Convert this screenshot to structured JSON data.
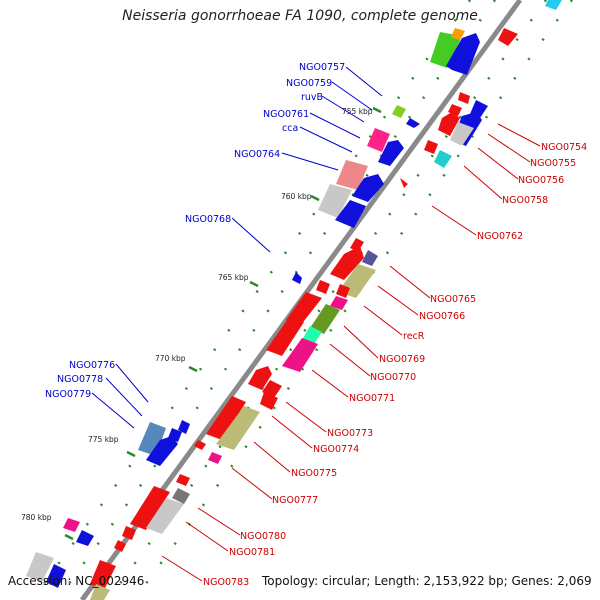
{
  "title": "Neisseria gonorrhoeae FA 1090, complete genome",
  "footer": {
    "accession": "Accession: NC_002946",
    "info": "Topology: circular; Length: 2,153,922 bp; Genes: 2,069"
  },
  "colors": {
    "backbone": "#888888",
    "upper_label": "#0000cc",
    "lower_label": "#cc0000",
    "tick": "#2a8a2a"
  },
  "scale": {
    "unit": "kbp",
    "ticks": [
      {
        "kbp": 755,
        "label": "755 kbp"
      },
      {
        "kbp": 760,
        "label": "760 kbp"
      },
      {
        "kbp": 765,
        "label": "765 kbp"
      },
      {
        "kbp": 770,
        "label": "770 kbp"
      },
      {
        "kbp": 775,
        "label": "775 kbp"
      },
      {
        "kbp": 780,
        "label": "780 kbp"
      }
    ]
  },
  "labels_upper": [
    {
      "text": "NGO0757"
    },
    {
      "text": "NGO0759"
    },
    {
      "text": "ruvB"
    },
    {
      "text": "NGO0761"
    },
    {
      "text": "cca"
    },
    {
      "text": "NGO0764"
    },
    {
      "text": "NGO0768"
    },
    {
      "text": "NGO0776"
    },
    {
      "text": "NGO0778"
    },
    {
      "text": "NGO0779"
    }
  ],
  "labels_lower": [
    {
      "text": "NGO0754"
    },
    {
      "text": "NGO0755"
    },
    {
      "text": "NGO0756"
    },
    {
      "text": "NGO0758"
    },
    {
      "text": "NGO0762"
    },
    {
      "text": "NGO0765"
    },
    {
      "text": "NGO0766"
    },
    {
      "text": "recR"
    },
    {
      "text": "NGO0769"
    },
    {
      "text": "NGO0770"
    },
    {
      "text": "NGO0771"
    },
    {
      "text": "NGO0773"
    },
    {
      "text": "NGO0774"
    },
    {
      "text": "NGO0775"
    },
    {
      "text": "NGO0777"
    },
    {
      "text": "NGO0780"
    },
    {
      "text": "NGO0781"
    },
    {
      "text": "NGO0783"
    }
  ]
}
